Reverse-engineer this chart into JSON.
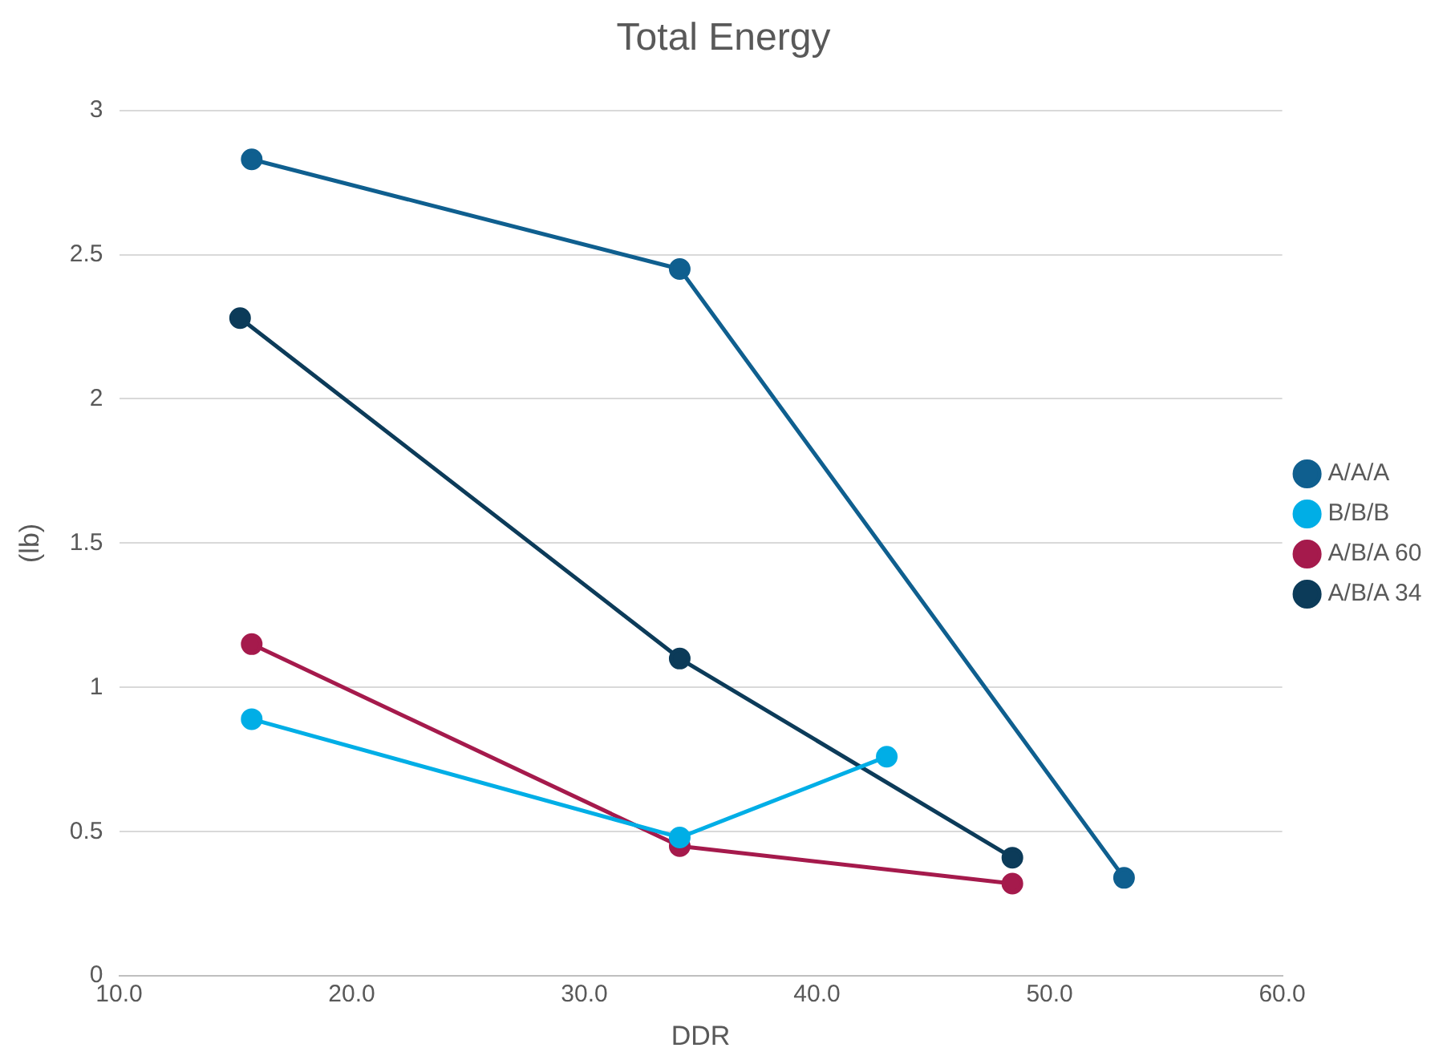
{
  "chart_data": {
    "type": "line",
    "title": "Total Energy",
    "xlabel": "DDR",
    "ylabel": "(lb)",
    "series": [
      {
        "name": "A/A/A",
        "color": "#0f5f8f",
        "x": [
          15.7,
          34.1,
          53.2
        ],
        "values": [
          2.83,
          2.45,
          0.34
        ]
      },
      {
        "name": "B/B/B",
        "color": "#00aee6",
        "x": [
          15.7,
          34.1,
          43.0
        ],
        "values": [
          0.89,
          0.48,
          0.76
        ]
      },
      {
        "name": "A/B/A 60",
        "color": "#a51a4c",
        "x": [
          15.7,
          34.1,
          48.4
        ],
        "values": [
          1.15,
          0.45,
          0.32
        ]
      },
      {
        "name": "A/B/A 34",
        "color": "#0c3b59",
        "x": [
          15.2,
          34.1,
          48.4
        ],
        "values": [
          2.28,
          1.1,
          0.41
        ]
      }
    ],
    "xlim": [
      10,
      60
    ],
    "xticks": [
      {
        "value": 10,
        "label": "10.0"
      },
      {
        "value": 20,
        "label": "20.0"
      },
      {
        "value": 30,
        "label": "30.0"
      },
      {
        "value": 40,
        "label": "40.0"
      },
      {
        "value": 50,
        "label": "50.0"
      },
      {
        "value": 60,
        "label": "60.0"
      }
    ],
    "ylim": [
      0,
      3
    ],
    "yticks": [
      0,
      0.5,
      1,
      1.5,
      2,
      2.5,
      3
    ],
    "grid": "y",
    "legend": "right",
    "marker": "circle",
    "line_style": "solid"
  }
}
